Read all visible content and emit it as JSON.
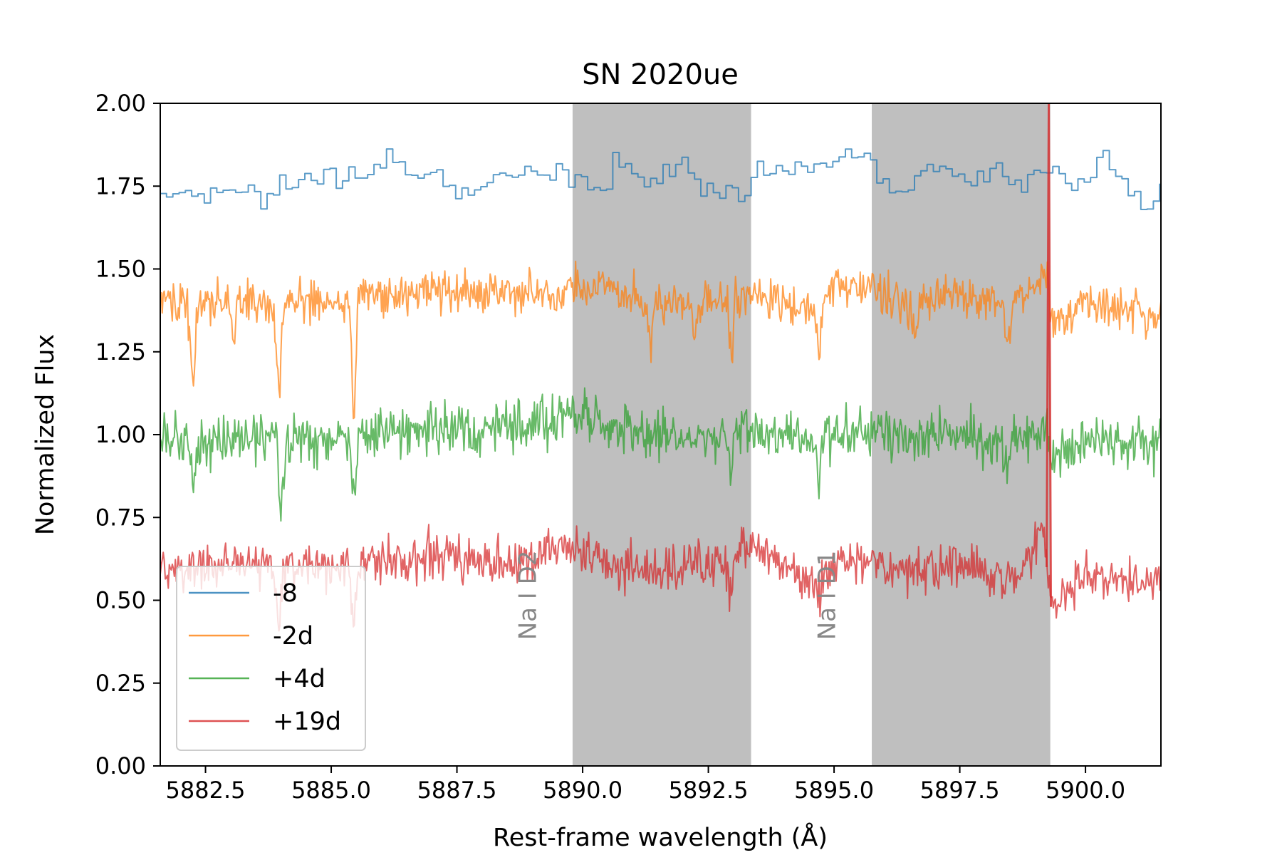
{
  "chart_data": {
    "type": "line",
    "title": "SN 2020ue",
    "xlabel": "Rest-frame wavelength (Å)",
    "ylabel": "Normalized Flux",
    "xlim": [
      5881.6,
      5901.5
    ],
    "ylim": [
      0.0,
      2.0
    ],
    "x_ticks": [
      5882.5,
      5885.0,
      5887.5,
      5890.0,
      5892.5,
      5895.0,
      5897.5,
      5900.0
    ],
    "x_tick_labels": [
      "5882.5",
      "5885.0",
      "5887.5",
      "5890.0",
      "5892.5",
      "5895.0",
      "5897.5",
      "5900.0"
    ],
    "y_ticks": [
      0.0,
      0.25,
      0.5,
      0.75,
      1.0,
      1.25,
      1.5,
      1.75,
      2.0
    ],
    "y_tick_labels": [
      "0.00",
      "0.25",
      "0.50",
      "0.75",
      "1.00",
      "1.25",
      "1.50",
      "1.75",
      "2.00"
    ],
    "grid": false,
    "legend_position": "lower-left",
    "shaded_regions": [
      {
        "x0": 5889.8,
        "x1": 5893.35,
        "color": "#bfbfbf"
      },
      {
        "x0": 5895.75,
        "x1": 5899.3,
        "color": "#bfbfbf"
      }
    ],
    "annotations": [
      {
        "text": "Na I D2",
        "x": 5888.9,
        "y": 0.38,
        "color": "#888888",
        "rotation": 90
      },
      {
        "text": "Na I D1",
        "x": 5894.85,
        "y": 0.38,
        "color": "#888888",
        "rotation": 90
      }
    ],
    "series": [
      {
        "name": "-8",
        "color": "#1f77b4",
        "style": "step",
        "baseline": 1.78,
        "noise": 0.025,
        "step": 0.125,
        "points": [
          [
            5881.6,
            1.75
          ],
          [
            5882.3,
            1.72
          ],
          [
            5883.0,
            1.75
          ],
          [
            5883.6,
            1.71
          ],
          [
            5884.5,
            1.77
          ],
          [
            5885.0,
            1.77
          ],
          [
            5885.5,
            1.79
          ],
          [
            5886.0,
            1.79
          ],
          [
            5886.2,
            1.85
          ],
          [
            5886.6,
            1.78
          ],
          [
            5887.3,
            1.75
          ],
          [
            5887.7,
            1.72
          ],
          [
            5888.3,
            1.78
          ],
          [
            5889.0,
            1.79
          ],
          [
            5889.6,
            1.8
          ],
          [
            5889.9,
            1.78
          ],
          [
            5890.4,
            1.73
          ],
          [
            5890.6,
            1.85
          ],
          [
            5891.0,
            1.78
          ],
          [
            5891.8,
            1.78
          ],
          [
            5892.0,
            1.85
          ],
          [
            5892.3,
            1.74
          ],
          [
            5892.9,
            1.73
          ],
          [
            5893.2,
            1.71
          ],
          [
            5893.4,
            1.8
          ],
          [
            5894.0,
            1.79
          ],
          [
            5894.5,
            1.8
          ],
          [
            5895.0,
            1.84
          ],
          [
            5895.5,
            1.85
          ],
          [
            5895.9,
            1.74
          ],
          [
            5896.3,
            1.73
          ],
          [
            5896.7,
            1.79
          ],
          [
            5897.5,
            1.78
          ],
          [
            5898.3,
            1.79
          ],
          [
            5898.7,
            1.73
          ],
          [
            5899.0,
            1.79
          ],
          [
            5899.5,
            1.78
          ],
          [
            5899.9,
            1.73
          ],
          [
            5900.3,
            1.85
          ],
          [
            5900.7,
            1.77
          ],
          [
            5901.2,
            1.7
          ],
          [
            5901.5,
            1.77
          ]
        ],
        "dips": []
      },
      {
        "name": "-2d",
        "color": "#ff7f0e",
        "style": "line",
        "baseline": 1.4,
        "noise": 0.045,
        "step": 0.02,
        "points": [
          [
            5881.6,
            1.39
          ],
          [
            5882.5,
            1.4
          ],
          [
            5883.5,
            1.4
          ],
          [
            5884.5,
            1.4
          ],
          [
            5885.0,
            1.4
          ],
          [
            5886.0,
            1.42
          ],
          [
            5887.0,
            1.44
          ],
          [
            5888.0,
            1.42
          ],
          [
            5889.0,
            1.43
          ],
          [
            5889.8,
            1.45
          ],
          [
            5890.5,
            1.44
          ],
          [
            5891.5,
            1.39
          ],
          [
            5892.5,
            1.4
          ],
          [
            5893.5,
            1.42
          ],
          [
            5894.5,
            1.36
          ],
          [
            5895.0,
            1.44
          ],
          [
            5895.7,
            1.44
          ],
          [
            5896.5,
            1.4
          ],
          [
            5897.5,
            1.42
          ],
          [
            5898.5,
            1.38
          ],
          [
            5899.2,
            1.5
          ],
          [
            5899.35,
            1.33
          ],
          [
            5900.0,
            1.4
          ],
          [
            5901.0,
            1.38
          ],
          [
            5901.5,
            1.36
          ]
        ],
        "dips": [
          [
            5882.25,
            0.24,
            0.07
          ],
          [
            5883.05,
            0.12,
            0.06
          ],
          [
            5883.95,
            0.26,
            0.07
          ],
          [
            5885.45,
            0.36,
            0.06
          ],
          [
            5889.45,
            0.1,
            0.06
          ],
          [
            5891.35,
            0.12,
            0.06
          ],
          [
            5892.25,
            0.1,
            0.06
          ],
          [
            5892.95,
            0.18,
            0.05
          ],
          [
            5894.7,
            0.14,
            0.05
          ],
          [
            5896.6,
            0.1,
            0.06
          ],
          [
            5898.45,
            0.12,
            0.06
          ]
        ]
      },
      {
        "name": "+4d",
        "color": "#2ca02c",
        "style": "line",
        "baseline": 1.0,
        "noise": 0.055,
        "step": 0.02,
        "points": [
          [
            5881.6,
            0.98
          ],
          [
            5882.5,
            0.99
          ],
          [
            5883.5,
            1.0
          ],
          [
            5884.5,
            0.99
          ],
          [
            5885.0,
            0.98
          ],
          [
            5886.0,
            1.02
          ],
          [
            5887.0,
            1.02
          ],
          [
            5888.0,
            1.01
          ],
          [
            5889.0,
            1.03
          ],
          [
            5889.8,
            1.06
          ],
          [
            5890.5,
            1.02
          ],
          [
            5891.5,
            1.0
          ],
          [
            5892.5,
            0.99
          ],
          [
            5893.5,
            1.02
          ],
          [
            5894.5,
            0.97
          ],
          [
            5895.7,
            1.02
          ],
          [
            5896.5,
            0.99
          ],
          [
            5897.5,
            1.0
          ],
          [
            5898.5,
            0.96
          ],
          [
            5899.2,
            1.03
          ],
          [
            5899.35,
            0.93
          ],
          [
            5900.0,
            0.99
          ],
          [
            5901.0,
            0.98
          ],
          [
            5901.5,
            0.97
          ]
        ],
        "dips": [
          [
            5882.25,
            0.14,
            0.06
          ],
          [
            5884.0,
            0.24,
            0.07
          ],
          [
            5885.45,
            0.2,
            0.06
          ],
          [
            5892.95,
            0.12,
            0.05
          ],
          [
            5894.7,
            0.12,
            0.05
          ],
          [
            5898.45,
            0.1,
            0.06
          ]
        ]
      },
      {
        "name": "+19d",
        "color": "#d62728",
        "style": "line",
        "baseline": 0.6,
        "noise": 0.05,
        "step": 0.02,
        "points": [
          [
            5881.6,
            0.58
          ],
          [
            5882.5,
            0.6
          ],
          [
            5883.5,
            0.61
          ],
          [
            5884.5,
            0.6
          ],
          [
            5885.0,
            0.6
          ],
          [
            5886.0,
            0.62
          ],
          [
            5887.0,
            0.63
          ],
          [
            5888.0,
            0.62
          ],
          [
            5889.0,
            0.62
          ],
          [
            5889.6,
            0.68
          ],
          [
            5889.9,
            0.64
          ],
          [
            5890.5,
            0.62
          ],
          [
            5891.5,
            0.59
          ],
          [
            5892.5,
            0.6
          ],
          [
            5893.4,
            0.66
          ],
          [
            5894.0,
            0.62
          ],
          [
            5894.5,
            0.55
          ],
          [
            5895.0,
            0.6
          ],
          [
            5895.7,
            0.62
          ],
          [
            5896.5,
            0.58
          ],
          [
            5897.5,
            0.61
          ],
          [
            5898.5,
            0.55
          ],
          [
            5899.15,
            0.7
          ],
          [
            5899.35,
            0.48
          ],
          [
            5900.0,
            0.58
          ],
          [
            5901.0,
            0.56
          ],
          [
            5901.5,
            0.55
          ]
        ],
        "dips": [
          [
            5883.95,
            0.2,
            0.06
          ],
          [
            5885.45,
            0.18,
            0.06
          ],
          [
            5892.95,
            0.12,
            0.05
          ],
          [
            5894.7,
            0.06,
            0.05
          ]
        ],
        "spike": {
          "x": 5899.27,
          "y_top": 2.0
        }
      }
    ]
  }
}
